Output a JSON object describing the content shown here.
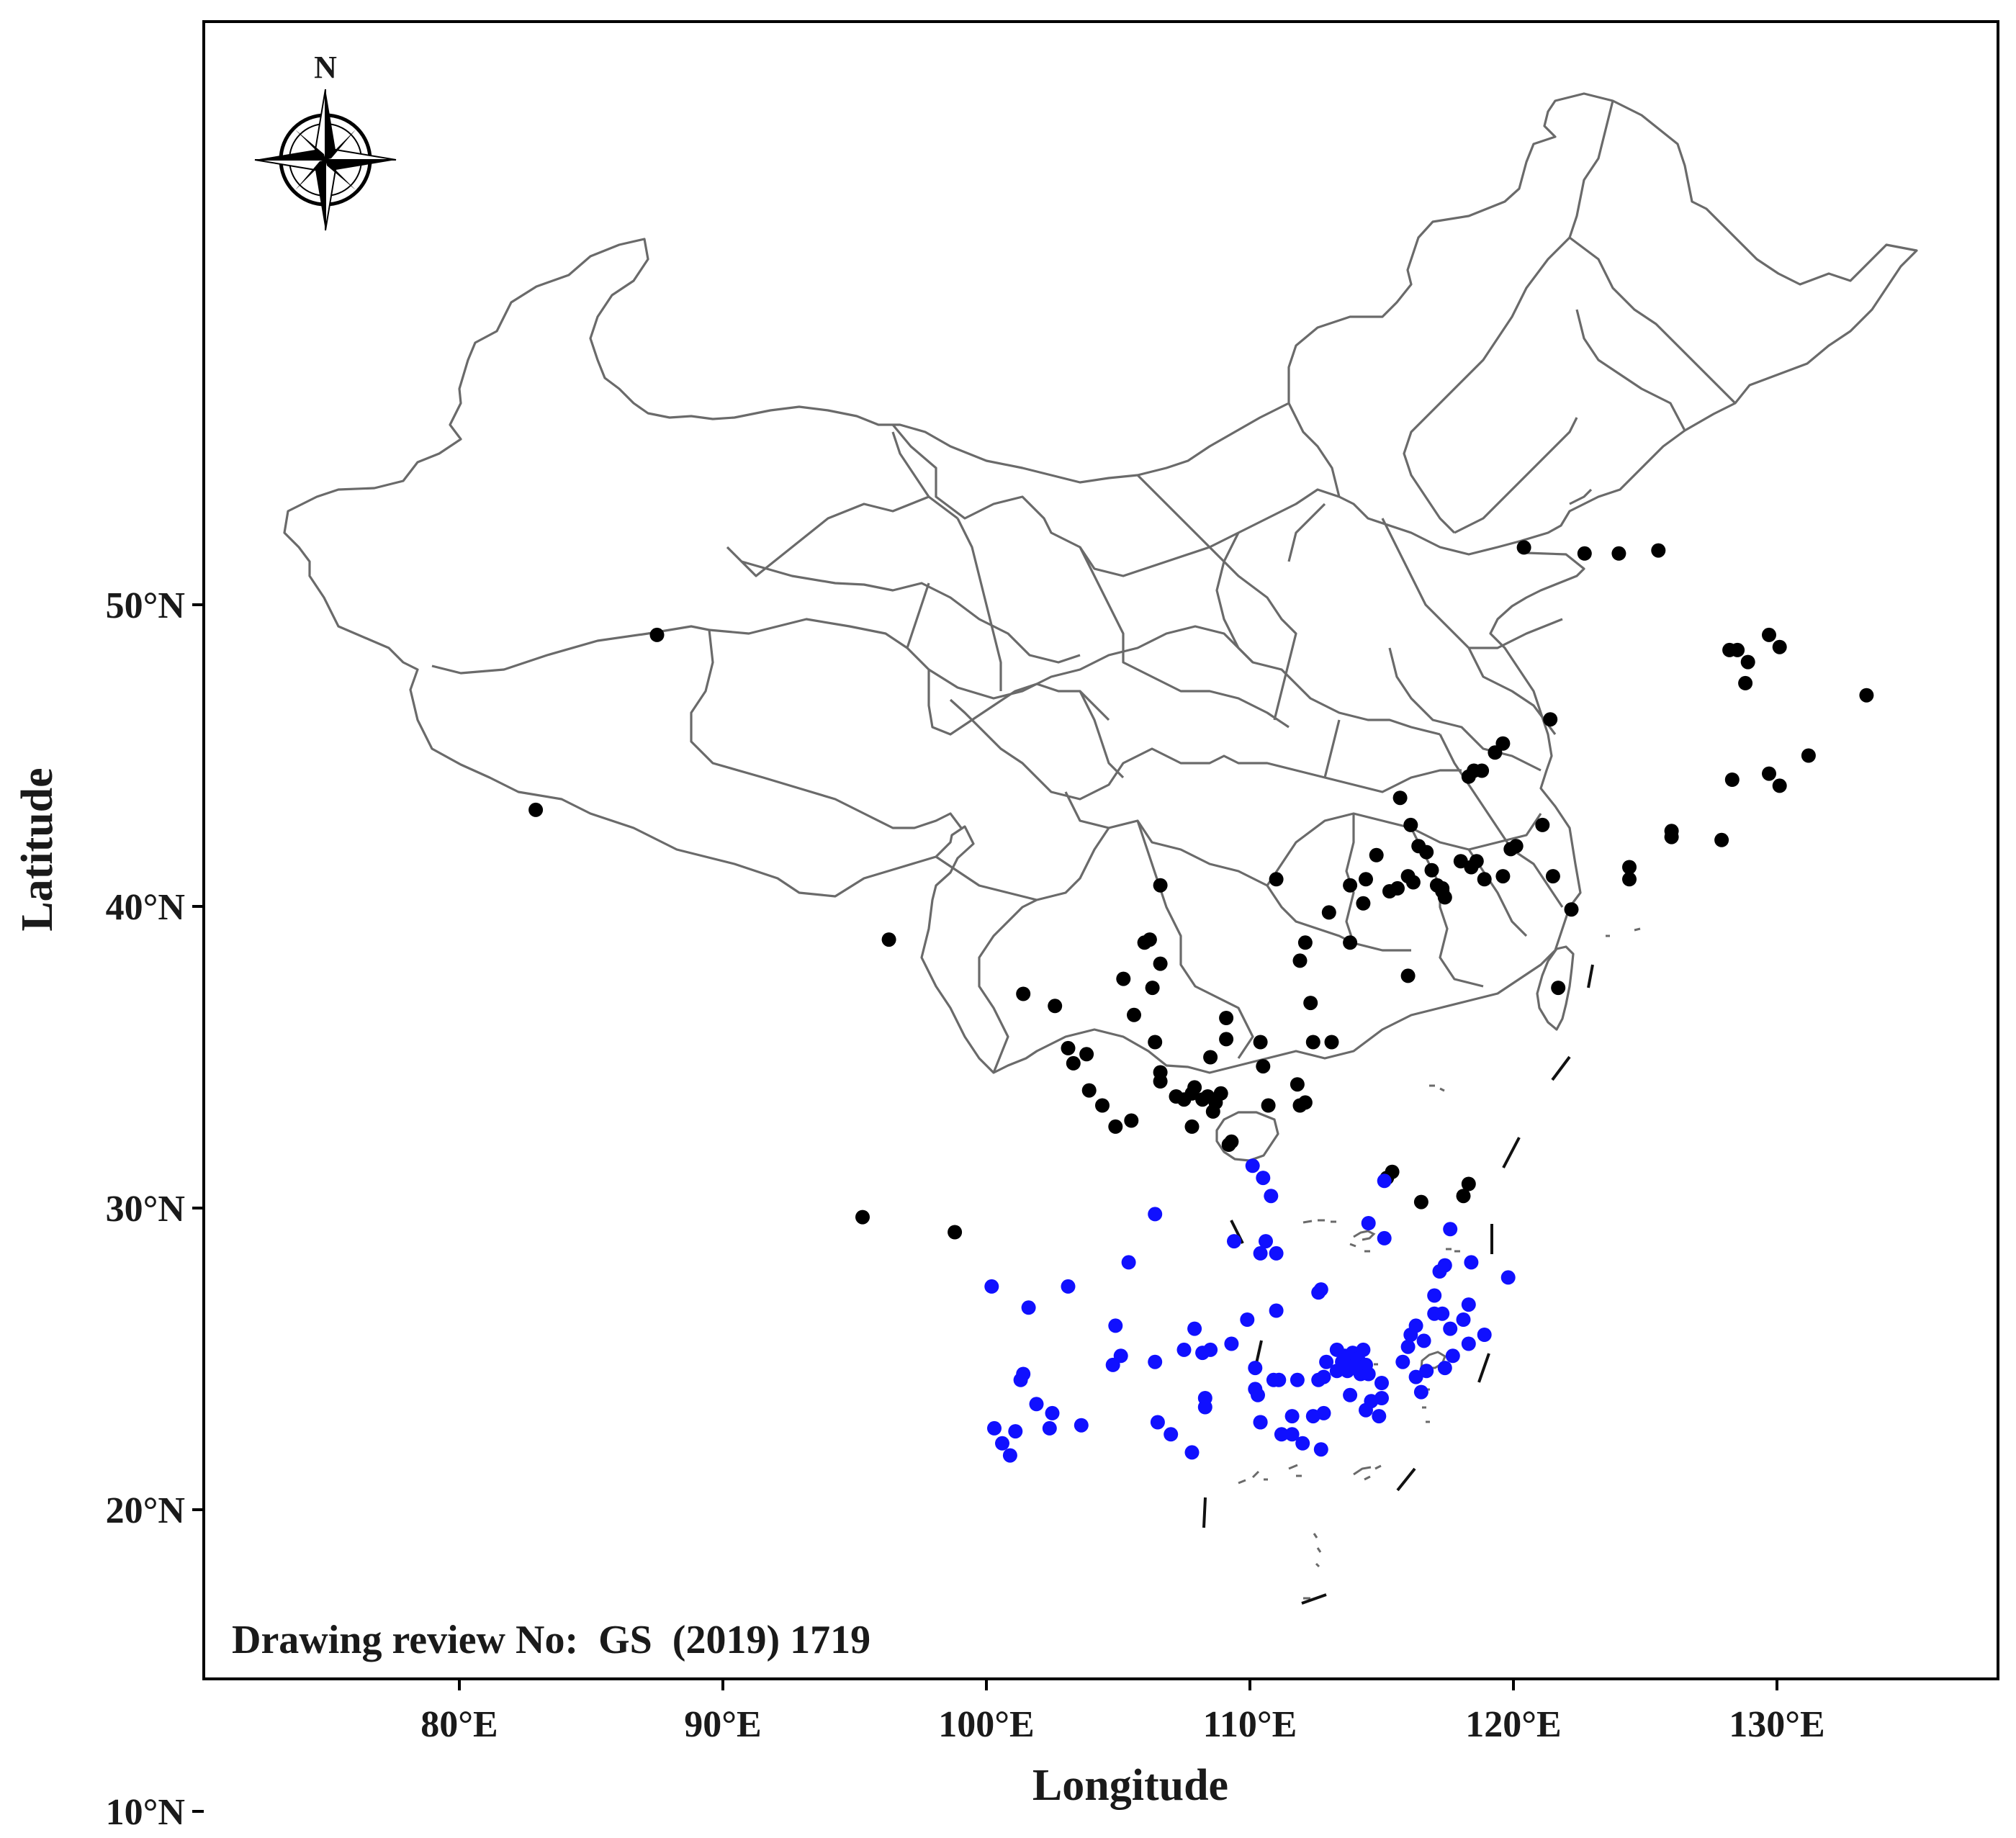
{
  "map": {
    "extent": {
      "lon_min": 70.0,
      "lon_max": 139.0,
      "lat_min": 1.0,
      "lat_max": 56.0
    },
    "x_ticks": [
      {
        "lon": 80,
        "label": "80°E"
      },
      {
        "lon": 90,
        "label": "90°E"
      },
      {
        "lon": 100,
        "label": "100°E"
      },
      {
        "lon": 110,
        "label": "110°E"
      },
      {
        "lon": 120,
        "label": "120°E"
      },
      {
        "lon": 130,
        "label": "130°E"
      }
    ],
    "y_ticks": [
      {
        "lat": 50,
        "label": "50°N"
      },
      {
        "lat": 40,
        "label": "40°N"
      },
      {
        "lat": 30,
        "label": "30°N"
      },
      {
        "lat": 20,
        "label": "20°N"
      },
      {
        "lat": 10,
        "label": "10°N"
      }
    ],
    "xlabel": "Longitude",
    "ylabel": "Latitude",
    "review_text": "Drawing review No:  GS  (2019) 1719",
    "north_label": "N",
    "colors": {
      "north_sites": "#000000",
      "south_sites": "#1010ff",
      "boundary": "#6a6a6a",
      "frame": "#000000"
    }
  },
  "chart_data": {
    "type": "scatter",
    "series": [
      {
        "color": "#000000",
        "points": [
          [
            87.5,
            49.0
          ],
          [
            82.9,
            43.2
          ],
          [
            96.3,
            38.9
          ],
          [
            101.4,
            37.1
          ],
          [
            95.3,
            29.7
          ],
          [
            98.8,
            29.2
          ],
          [
            102.6,
            36.7
          ],
          [
            103.1,
            35.3
          ],
          [
            103.3,
            34.8
          ],
          [
            103.8,
            35.1
          ],
          [
            103.9,
            33.9
          ],
          [
            104.4,
            33.4
          ],
          [
            104.9,
            32.7
          ],
          [
            105.5,
            32.9
          ],
          [
            105.2,
            37.6
          ],
          [
            105.6,
            36.4
          ],
          [
            106.0,
            38.8
          ],
          [
            106.2,
            38.9
          ],
          [
            106.3,
            37.3
          ],
          [
            106.4,
            35.5
          ],
          [
            106.6,
            34.5
          ],
          [
            106.6,
            34.2
          ],
          [
            106.6,
            38.1
          ],
          [
            106.6,
            40.7
          ],
          [
            107.2,
            33.7
          ],
          [
            107.5,
            33.6
          ],
          [
            107.8,
            33.8
          ],
          [
            107.9,
            34.0
          ],
          [
            108.2,
            33.6
          ],
          [
            108.4,
            33.7
          ],
          [
            108.6,
            33.2
          ],
          [
            108.7,
            33.5
          ],
          [
            108.9,
            33.8
          ],
          [
            107.8,
            32.7
          ],
          [
            108.5,
            35.0
          ],
          [
            109.1,
            35.6
          ],
          [
            109.1,
            36.3
          ],
          [
            109.3,
            32.2
          ],
          [
            110.4,
            35.5
          ],
          [
            110.5,
            34.7
          ],
          [
            110.7,
            33.4
          ],
          [
            111.8,
            34.1
          ],
          [
            111.9,
            33.4
          ],
          [
            112.1,
            33.5
          ],
          [
            111.9,
            38.2
          ],
          [
            112.1,
            38.8
          ],
          [
            112.3,
            36.8
          ],
          [
            112.4,
            35.5
          ],
          [
            113.1,
            35.5
          ],
          [
            113.0,
            39.8
          ],
          [
            113.8,
            38.8
          ],
          [
            113.8,
            40.7
          ],
          [
            114.3,
            40.1
          ],
          [
            114.4,
            40.9
          ],
          [
            114.8,
            41.7
          ],
          [
            115.3,
            40.5
          ],
          [
            115.6,
            40.6
          ],
          [
            116.0,
            41.0
          ],
          [
            116.2,
            40.8
          ],
          [
            116.4,
            42.0
          ],
          [
            116.7,
            41.8
          ],
          [
            116.9,
            41.2
          ],
          [
            117.1,
            40.7
          ],
          [
            117.3,
            40.5
          ],
          [
            117.4,
            40.3
          ],
          [
            117.3,
            40.6
          ],
          [
            118.0,
            41.5
          ],
          [
            118.4,
            41.3
          ],
          [
            118.6,
            41.5
          ],
          [
            118.9,
            40.9
          ],
          [
            119.6,
            41.0
          ],
          [
            119.9,
            41.9
          ],
          [
            120.1,
            42.0
          ],
          [
            121.5,
            41.0
          ],
          [
            121.1,
            42.7
          ],
          [
            122.2,
            39.9
          ],
          [
            121.7,
            37.3
          ],
          [
            115.7,
            43.6
          ],
          [
            116.1,
            42.7
          ],
          [
            116.0,
            37.7
          ],
          [
            111.0,
            40.9
          ],
          [
            118.3,
            44.3
          ],
          [
            118.5,
            44.5
          ],
          [
            118.8,
            44.5
          ],
          [
            119.3,
            45.1
          ],
          [
            119.6,
            45.4
          ],
          [
            121.4,
            46.2
          ],
          [
            120.4,
            51.9
          ],
          [
            122.7,
            51.7
          ],
          [
            124.0,
            51.7
          ],
          [
            125.5,
            51.8
          ],
          [
            128.2,
            48.5
          ],
          [
            128.5,
            48.5
          ],
          [
            128.8,
            47.4
          ],
          [
            128.9,
            48.1
          ],
          [
            129.7,
            49.0
          ],
          [
            130.1,
            48.6
          ],
          [
            133.4,
            47.0
          ],
          [
            131.2,
            45.0
          ],
          [
            129.7,
            44.4
          ],
          [
            128.3,
            44.2
          ],
          [
            130.1,
            44.0
          ],
          [
            127.9,
            42.2
          ],
          [
            126.0,
            42.3
          ],
          [
            126.0,
            42.5
          ],
          [
            124.4,
            41.3
          ],
          [
            124.4,
            40.9
          ],
          [
            115.2,
            31.0
          ],
          [
            115.4,
            31.2
          ],
          [
            116.5,
            30.2
          ],
          [
            118.1,
            30.4
          ],
          [
            118.3,
            30.8
          ],
          [
            109.2,
            32.1
          ]
        ]
      },
      {
        "color": "#1010ff",
        "points": [
          [
            100.2,
            27.4
          ],
          [
            101.6,
            26.7
          ],
          [
            103.1,
            27.4
          ],
          [
            101.3,
            24.3
          ],
          [
            101.4,
            24.5
          ],
          [
            101.9,
            23.5
          ],
          [
            102.5,
            23.2
          ],
          [
            102.4,
            22.7
          ],
          [
            103.6,
            22.8
          ],
          [
            100.3,
            22.7
          ],
          [
            100.6,
            22.2
          ],
          [
            100.9,
            21.8
          ],
          [
            101.1,
            22.6
          ],
          [
            105.4,
            28.2
          ],
          [
            106.4,
            29.8
          ],
          [
            104.9,
            26.1
          ],
          [
            105.1,
            25.1
          ],
          [
            104.8,
            24.8
          ],
          [
            106.4,
            24.9
          ],
          [
            106.5,
            22.9
          ],
          [
            107.0,
            22.5
          ],
          [
            107.5,
            25.3
          ],
          [
            107.9,
            26.0
          ],
          [
            108.2,
            25.2
          ],
          [
            108.3,
            23.7
          ],
          [
            108.3,
            23.4
          ],
          [
            107.8,
            21.9
          ],
          [
            108.5,
            25.3
          ],
          [
            109.3,
            25.5
          ],
          [
            109.4,
            28.9
          ],
          [
            109.9,
            26.3
          ],
          [
            110.1,
            31.4
          ],
          [
            110.4,
            28.5
          ],
          [
            110.5,
            31.0
          ],
          [
            110.6,
            28.9
          ],
          [
            110.8,
            30.4
          ],
          [
            111.0,
            28.5
          ],
          [
            111.0,
            26.6
          ],
          [
            110.9,
            24.3
          ],
          [
            111.1,
            24.3
          ],
          [
            110.2,
            24.7
          ],
          [
            110.2,
            24.0
          ],
          [
            110.3,
            23.8
          ],
          [
            110.4,
            22.9
          ],
          [
            110.4,
            22.9
          ],
          [
            111.2,
            22.5
          ],
          [
            111.6,
            22.5
          ],
          [
            111.6,
            23.1
          ],
          [
            111.8,
            24.3
          ],
          [
            112.0,
            22.2
          ],
          [
            112.4,
            23.1
          ],
          [
            112.6,
            24.3
          ],
          [
            112.6,
            27.2
          ],
          [
            112.7,
            27.3
          ],
          [
            112.8,
            23.2
          ],
          [
            112.7,
            22.0
          ],
          [
            112.8,
            24.4
          ],
          [
            112.9,
            24.9
          ],
          [
            113.3,
            25.3
          ],
          [
            113.3,
            24.6
          ],
          [
            113.5,
            24.9
          ],
          [
            113.6,
            25.1
          ],
          [
            113.7,
            24.6
          ],
          [
            113.8,
            24.9
          ],
          [
            113.9,
            25.2
          ],
          [
            114.0,
            24.7
          ],
          [
            114.1,
            25.0
          ],
          [
            114.2,
            24.5
          ],
          [
            114.3,
            25.3
          ],
          [
            114.4,
            24.8
          ],
          [
            114.5,
            24.5
          ],
          [
            113.8,
            23.8
          ],
          [
            114.4,
            23.3
          ],
          [
            114.6,
            23.6
          ],
          [
            115.0,
            24.2
          ],
          [
            114.9,
            23.1
          ],
          [
            115.0,
            23.7
          ],
          [
            114.5,
            29.5
          ],
          [
            115.1,
            29.0
          ],
          [
            115.1,
            30.9
          ],
          [
            115.8,
            24.9
          ],
          [
            116.0,
            25.4
          ],
          [
            116.1,
            25.8
          ],
          [
            116.3,
            26.1
          ],
          [
            116.3,
            24.4
          ],
          [
            116.5,
            23.9
          ],
          [
            116.6,
            25.6
          ],
          [
            116.7,
            24.6
          ],
          [
            117.0,
            26.5
          ],
          [
            117.0,
            27.1
          ],
          [
            117.2,
            27.9
          ],
          [
            117.3,
            26.5
          ],
          [
            117.4,
            24.7
          ],
          [
            117.4,
            28.1
          ],
          [
            117.6,
            29.3
          ],
          [
            117.7,
            25.1
          ],
          [
            118.1,
            26.3
          ],
          [
            118.3,
            26.8
          ],
          [
            118.3,
            25.5
          ],
          [
            118.4,
            28.2
          ],
          [
            118.9,
            25.8
          ],
          [
            119.8,
            27.7
          ],
          [
            117.6,
            26.0
          ]
        ]
      }
    ]
  }
}
